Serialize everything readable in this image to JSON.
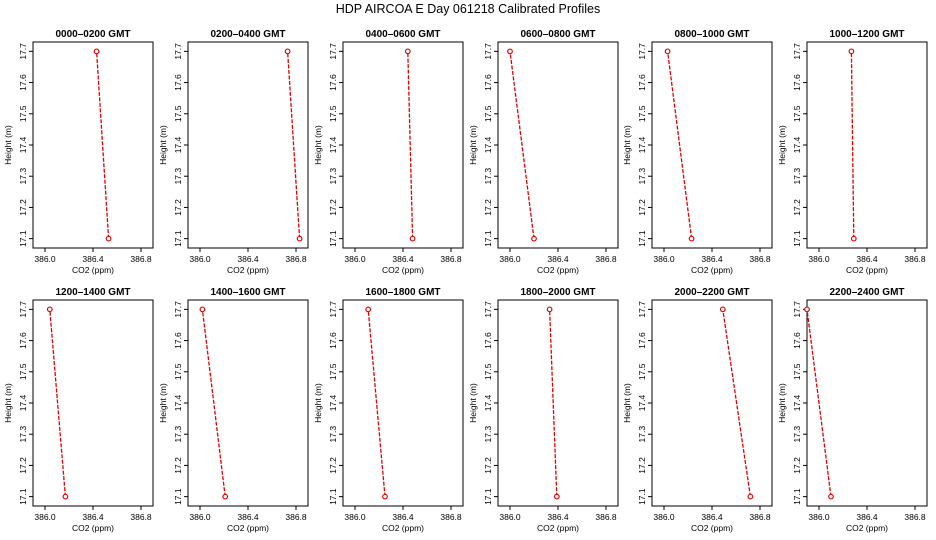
{
  "chart_data": {
    "type": "line",
    "title": "HDP  AIRCOA E  Day 061218  Calibrated Profiles",
    "colors": {
      "line": "#e00000",
      "marker": "#e00000",
      "axes": "#000000"
    },
    "panels": [
      {
        "title": "0000–0200 GMT",
        "xlabel": "CO2 (ppm)",
        "ylabel": "Height (m)",
        "xlim": [
          385.9,
          386.9
        ],
        "ylim": [
          17.07,
          17.73
        ],
        "xticks": [
          386.0,
          386.4,
          386.8
        ],
        "xtick_labels": [
          "386.0",
          "386.4",
          "386.8"
        ],
        "yticks": [
          17.1,
          17.2,
          17.3,
          17.4,
          17.5,
          17.6,
          17.7
        ],
        "ytick_labels": [
          "17.1",
          "17.2",
          "17.3",
          "17.4",
          "17.5",
          "17.6",
          "17.7"
        ],
        "series": [
          {
            "x": [
              386.53,
              386.43
            ],
            "y": [
              17.1,
              17.7
            ]
          }
        ]
      },
      {
        "title": "0200–0400 GMT",
        "xlabel": "CO2 (ppm)",
        "ylabel": "Height (m)",
        "xlim": [
          385.9,
          386.9
        ],
        "ylim": [
          17.07,
          17.73
        ],
        "xticks": [
          386.0,
          386.4,
          386.8
        ],
        "xtick_labels": [
          "386.0",
          "386.4",
          "386.8"
        ],
        "yticks": [
          17.1,
          17.2,
          17.3,
          17.4,
          17.5,
          17.6,
          17.7
        ],
        "ytick_labels": [
          "17.1",
          "17.2",
          "17.3",
          "17.4",
          "17.5",
          "17.6",
          "17.7"
        ],
        "series": [
          {
            "x": [
              386.83,
              386.73
            ],
            "y": [
              17.1,
              17.7
            ]
          }
        ]
      },
      {
        "title": "0400–0600 GMT",
        "xlabel": "CO2 (ppm)",
        "ylabel": "Height (m)",
        "xlim": [
          385.9,
          386.9
        ],
        "ylim": [
          17.07,
          17.73
        ],
        "xticks": [
          386.0,
          386.4,
          386.8
        ],
        "xtick_labels": [
          "386.0",
          "386.4",
          "386.8"
        ],
        "yticks": [
          17.1,
          17.2,
          17.3,
          17.4,
          17.5,
          17.6,
          17.7
        ],
        "ytick_labels": [
          "17.1",
          "17.2",
          "17.3",
          "17.4",
          "17.5",
          "17.6",
          "17.7"
        ],
        "series": [
          {
            "x": [
              386.48,
              386.44
            ],
            "y": [
              17.1,
              17.7
            ]
          }
        ]
      },
      {
        "title": "0600–0800 GMT",
        "xlabel": "CO2 (ppm)",
        "ylabel": "Height (m)",
        "xlim": [
          385.9,
          386.9
        ],
        "ylim": [
          17.07,
          17.73
        ],
        "xticks": [
          386.0,
          386.4,
          386.8
        ],
        "xtick_labels": [
          "386.0",
          "386.4",
          "386.8"
        ],
        "yticks": [
          17.1,
          17.2,
          17.3,
          17.4,
          17.5,
          17.6,
          17.7
        ],
        "ytick_labels": [
          "17.1",
          "17.2",
          "17.3",
          "17.4",
          "17.5",
          "17.6",
          "17.7"
        ],
        "series": [
          {
            "x": [
              386.2,
              386.0
            ],
            "y": [
              17.1,
              17.7
            ]
          }
        ]
      },
      {
        "title": "0800–1000 GMT",
        "xlabel": "CO2 (ppm)",
        "ylabel": "Height (m)",
        "xlim": [
          385.9,
          386.9
        ],
        "ylim": [
          17.07,
          17.73
        ],
        "xticks": [
          386.0,
          386.4,
          386.8
        ],
        "xtick_labels": [
          "386.0",
          "386.4",
          "386.8"
        ],
        "yticks": [
          17.1,
          17.2,
          17.3,
          17.4,
          17.5,
          17.6,
          17.7
        ],
        "ytick_labels": [
          "17.1",
          "17.2",
          "17.3",
          "17.4",
          "17.5",
          "17.6",
          "17.7"
        ],
        "series": [
          {
            "x": [
              386.23,
              386.03
            ],
            "y": [
              17.1,
              17.7
            ]
          }
        ]
      },
      {
        "title": "1000–1200 GMT",
        "xlabel": "CO2 (ppm)",
        "ylabel": "Height (m)",
        "xlim": [
          385.9,
          386.9
        ],
        "ylim": [
          17.07,
          17.73
        ],
        "xticks": [
          386.0,
          386.4,
          386.8
        ],
        "xtick_labels": [
          "386.0",
          "386.4",
          "386.8"
        ],
        "yticks": [
          17.1,
          17.2,
          17.3,
          17.4,
          17.5,
          17.6,
          17.7
        ],
        "ytick_labels": [
          "17.1",
          "17.2",
          "17.3",
          "17.4",
          "17.5",
          "17.6",
          "17.7"
        ],
        "series": [
          {
            "x": [
              386.29,
              386.27
            ],
            "y": [
              17.1,
              17.7
            ]
          }
        ]
      },
      {
        "title": "1200–1400 GMT",
        "xlabel": "CO2 (ppm)",
        "ylabel": "Height (m)",
        "xlim": [
          385.9,
          386.9
        ],
        "ylim": [
          17.07,
          17.73
        ],
        "xticks": [
          386.0,
          386.4,
          386.8
        ],
        "xtick_labels": [
          "386.0",
          "386.4",
          "386.8"
        ],
        "yticks": [
          17.1,
          17.2,
          17.3,
          17.4,
          17.5,
          17.6,
          17.7
        ],
        "ytick_labels": [
          "17.1",
          "17.2",
          "17.3",
          "17.4",
          "17.5",
          "17.6",
          "17.7"
        ],
        "series": [
          {
            "x": [
              386.17,
              386.04
            ],
            "y": [
              17.1,
              17.7
            ]
          }
        ]
      },
      {
        "title": "1400–1600 GMT",
        "xlabel": "CO2 (ppm)",
        "ylabel": "Height (m)",
        "xlim": [
          385.9,
          386.9
        ],
        "ylim": [
          17.07,
          17.73
        ],
        "xticks": [
          386.0,
          386.4,
          386.8
        ],
        "xtick_labels": [
          "386.0",
          "386.4",
          "386.8"
        ],
        "yticks": [
          17.1,
          17.2,
          17.3,
          17.4,
          17.5,
          17.6,
          17.7
        ],
        "ytick_labels": [
          "17.1",
          "17.2",
          "17.3",
          "17.4",
          "17.5",
          "17.6",
          "17.7"
        ],
        "series": [
          {
            "x": [
              386.21,
              386.02
            ],
            "y": [
              17.1,
              17.7
            ]
          }
        ]
      },
      {
        "title": "1600–1800 GMT",
        "xlabel": "CO2 (ppm)",
        "ylabel": "Height (m)",
        "xlim": [
          385.9,
          386.9
        ],
        "ylim": [
          17.07,
          17.73
        ],
        "xticks": [
          386.0,
          386.4,
          386.8
        ],
        "xtick_labels": [
          "386.0",
          "386.4",
          "386.8"
        ],
        "yticks": [
          17.1,
          17.2,
          17.3,
          17.4,
          17.5,
          17.6,
          17.7
        ],
        "ytick_labels": [
          "17.1",
          "17.2",
          "17.3",
          "17.4",
          "17.5",
          "17.6",
          "17.7"
        ],
        "series": [
          {
            "x": [
              386.25,
              386.11
            ],
            "y": [
              17.1,
              17.7
            ]
          }
        ]
      },
      {
        "title": "1800–2000 GMT",
        "xlabel": "CO2 (ppm)",
        "ylabel": "Height (m)",
        "xlim": [
          385.9,
          386.9
        ],
        "ylim": [
          17.07,
          17.73
        ],
        "xticks": [
          386.0,
          386.4,
          386.8
        ],
        "xtick_labels": [
          "386.0",
          "386.4",
          "386.8"
        ],
        "yticks": [
          17.1,
          17.2,
          17.3,
          17.4,
          17.5,
          17.6,
          17.7
        ],
        "ytick_labels": [
          "17.1",
          "17.2",
          "17.3",
          "17.4",
          "17.5",
          "17.6",
          "17.7"
        ],
        "series": [
          {
            "x": [
              386.39,
              386.33
            ],
            "y": [
              17.1,
              17.7
            ]
          }
        ]
      },
      {
        "title": "2000–2200 GMT",
        "xlabel": "CO2 (ppm)",
        "ylabel": "Height (m)",
        "xlim": [
          385.9,
          386.9
        ],
        "ylim": [
          17.07,
          17.73
        ],
        "xticks": [
          386.0,
          386.4,
          386.8
        ],
        "xtick_labels": [
          "386.0",
          "386.4",
          "386.8"
        ],
        "yticks": [
          17.1,
          17.2,
          17.3,
          17.4,
          17.5,
          17.6,
          17.7
        ],
        "ytick_labels": [
          "17.1",
          "17.2",
          "17.3",
          "17.4",
          "17.5",
          "17.6",
          "17.7"
        ],
        "series": [
          {
            "x": [
              386.72,
              386.49
            ],
            "y": [
              17.1,
              17.7
            ]
          }
        ]
      },
      {
        "title": "2200–2400 GMT",
        "xlabel": "CO2 (ppm)",
        "ylabel": "Height (m)",
        "xlim": [
          385.9,
          386.9
        ],
        "ylim": [
          17.07,
          17.73
        ],
        "xticks": [
          386.0,
          386.4,
          386.8
        ],
        "xtick_labels": [
          "386.0",
          "386.4",
          "386.8"
        ],
        "yticks": [
          17.1,
          17.2,
          17.3,
          17.4,
          17.5,
          17.6,
          17.7
        ],
        "ytick_labels": [
          "17.1",
          "17.2",
          "17.3",
          "17.4",
          "17.5",
          "17.6",
          "17.7"
        ],
        "series": [
          {
            "x": [
              386.1,
              385.9
            ],
            "y": [
              17.1,
              17.7
            ]
          }
        ]
      }
    ]
  }
}
